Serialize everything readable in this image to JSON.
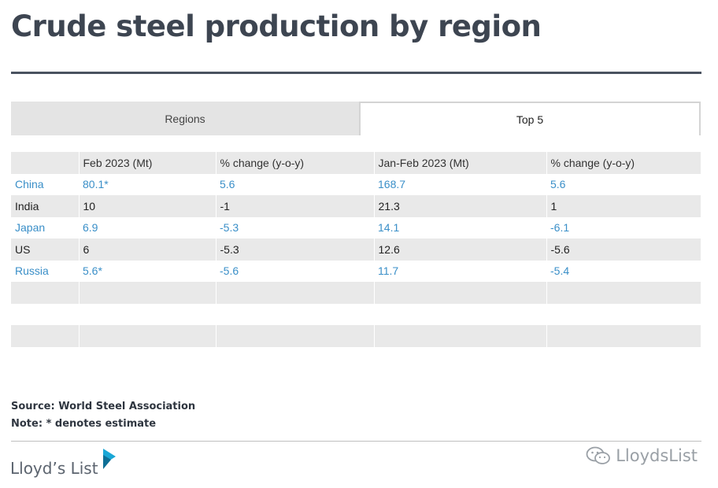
{
  "title": "Crude steel production by region",
  "tabs": [
    {
      "label": "Regions",
      "active": false
    },
    {
      "label": "Top 5",
      "active": true
    }
  ],
  "colors": {
    "title": "#3d4551",
    "link_blue": "#3a8fc8",
    "row_shade": "#e9e9e9",
    "logo_teal": "#1aa7d6"
  },
  "chart_data": {
    "type": "table",
    "columns": [
      "",
      "Feb 2023 (Mt)",
      "% change (y-o-y)",
      "Jan-Feb 2023 (Mt)",
      "% change (y-o-y)"
    ],
    "rows": [
      {
        "region": "China",
        "feb": "80.1*",
        "feb_change": "5.6",
        "janfeb": "168.7",
        "janfeb_change": "5.6",
        "style": "blue"
      },
      {
        "region": "India",
        "feb": "10",
        "feb_change": "-1",
        "janfeb": "21.3",
        "janfeb_change": "1",
        "style": "dark"
      },
      {
        "region": "Japan",
        "feb": "6.9",
        "feb_change": "-5.3",
        "janfeb": "14.1",
        "janfeb_change": "-6.1",
        "style": "blue"
      },
      {
        "region": "US",
        "feb": "6",
        "feb_change": "-5.3",
        "janfeb": "12.6",
        "janfeb_change": "-5.6",
        "style": "dark"
      },
      {
        "region": "Russia",
        "feb": "5.6*",
        "feb_change": "-5.6",
        "janfeb": "11.7",
        "janfeb_change": "-5.4",
        "style": "blue"
      }
    ]
  },
  "notes": {
    "source": "Source: World Steel Association",
    "note": "Note: * denotes estimate"
  },
  "logo": {
    "text": "Lloyd’s List"
  },
  "watermark": {
    "text": "LloydsList",
    "icon": "wechat-icon"
  }
}
